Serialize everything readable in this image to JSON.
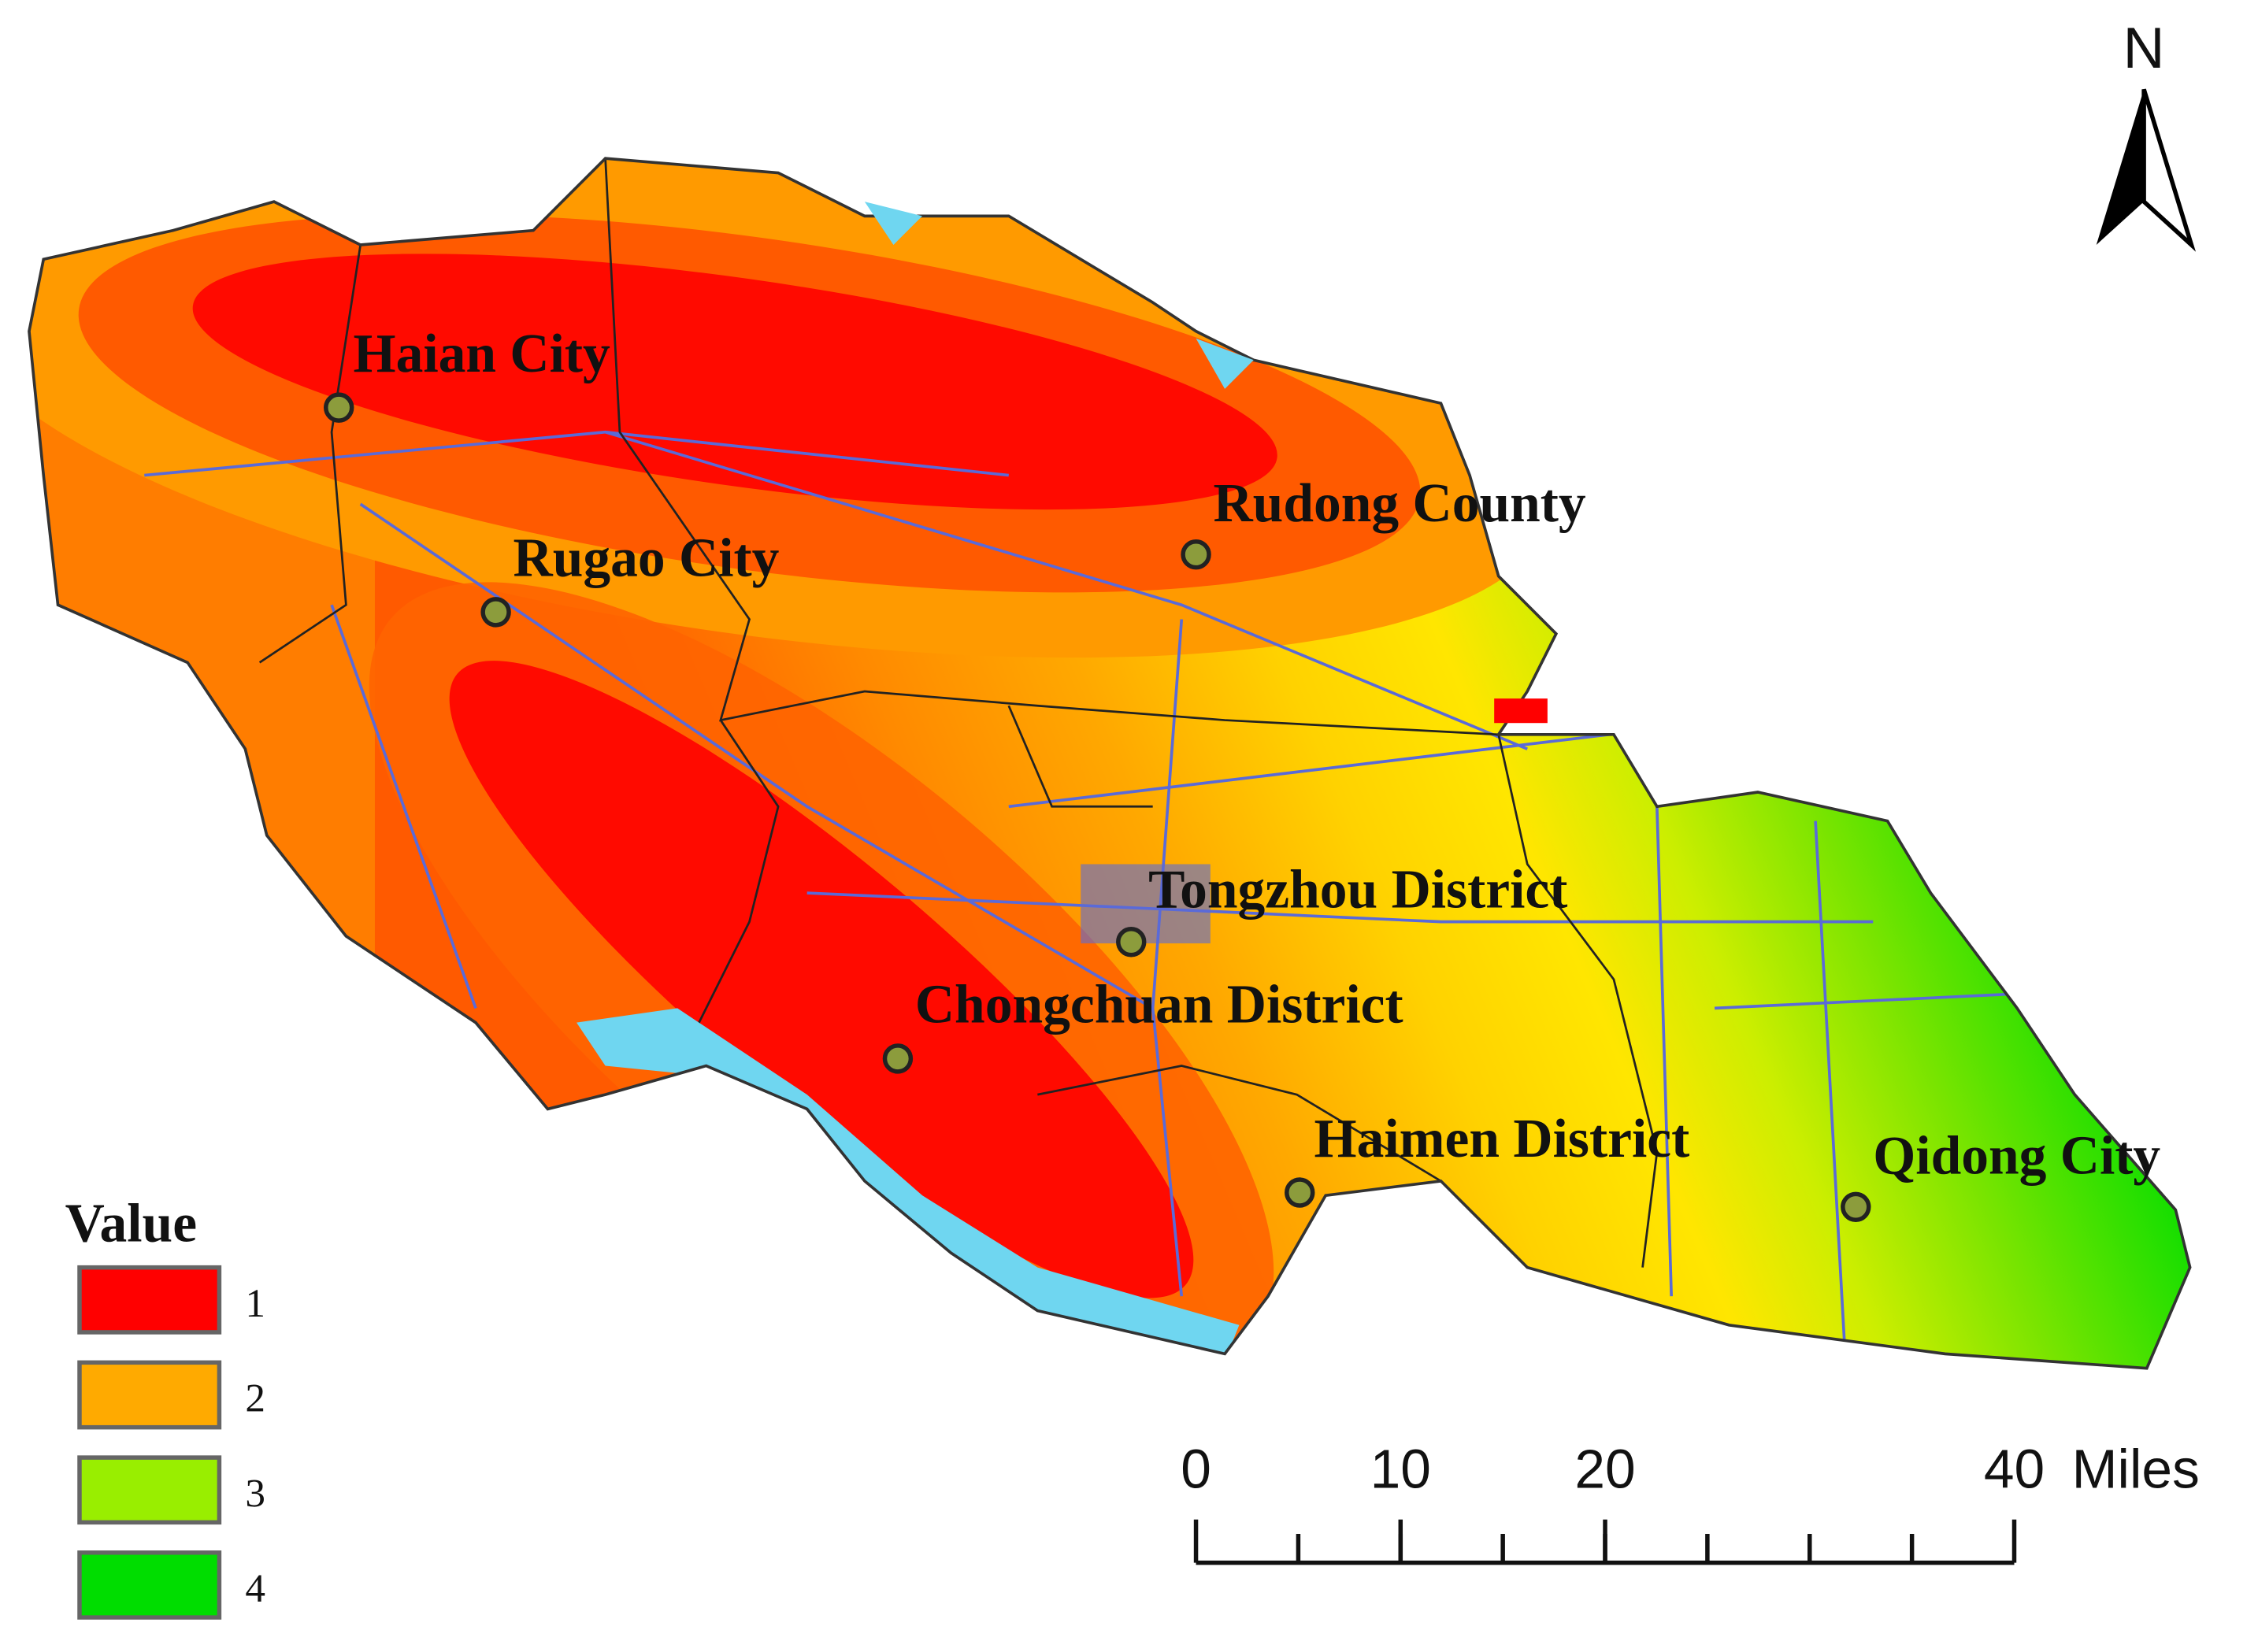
{
  "north_label": "N",
  "places": [
    {
      "label": "Haian City"
    },
    {
      "label": "Rugao City"
    },
    {
      "label": "Rudong County"
    },
    {
      "label": "Tongzhou District"
    },
    {
      "label": "Chongchuan District"
    },
    {
      "label": "Haimen District"
    },
    {
      "label": "Qidong City"
    }
  ],
  "legend": {
    "title": "Value",
    "items": [
      {
        "label": "1",
        "color": "#ff0000"
      },
      {
        "label": "2",
        "color": "#ffaa00"
      },
      {
        "label": "3",
        "color": "#99ee00"
      },
      {
        "label": "4",
        "color": "#00dd00"
      }
    ]
  },
  "scale_bar": {
    "ticks": [
      0,
      10,
      20,
      40
    ],
    "unit": "Miles"
  }
}
